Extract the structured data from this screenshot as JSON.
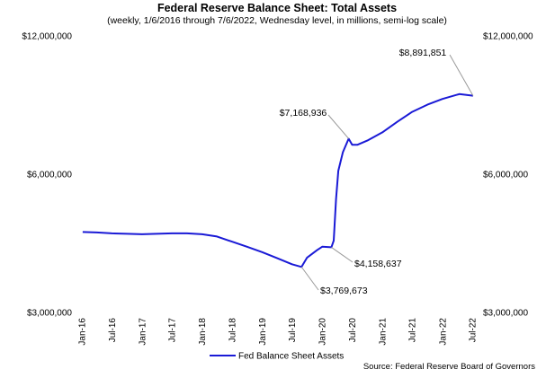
{
  "chart_data": {
    "type": "line",
    "title": "Federal Reserve Balance Sheet: Total Assets",
    "subtitle": "(weekly, 1/6/2016 through 7/6/2022, Wednesday level, in millions, semi-log scale)",
    "y_scale": "log",
    "ylim": [
      3000000,
      12000000
    ],
    "y_ticks": [
      {
        "value": 12000000,
        "label": "$12,000,000"
      },
      {
        "value": 6000000,
        "label": "$6,000,000"
      },
      {
        "value": 3000000,
        "label": "$3,000,000"
      }
    ],
    "x_range": [
      "2016-01-06",
      "2022-07-06"
    ],
    "x_ticks": [
      {
        "date": "2016-01-01",
        "label": "Jan-16"
      },
      {
        "date": "2016-07-01",
        "label": "Jul-16"
      },
      {
        "date": "2017-01-01",
        "label": "Jan-17"
      },
      {
        "date": "2017-07-01",
        "label": "Jul-17"
      },
      {
        "date": "2018-01-01",
        "label": "Jan-18"
      },
      {
        "date": "2018-07-01",
        "label": "Jul-18"
      },
      {
        "date": "2019-01-01",
        "label": "Jan-19"
      },
      {
        "date": "2019-07-01",
        "label": "Jul-19"
      },
      {
        "date": "2020-01-01",
        "label": "Jan-20"
      },
      {
        "date": "2020-07-01",
        "label": "Jul-20"
      },
      {
        "date": "2021-01-01",
        "label": "Jan-21"
      },
      {
        "date": "2021-07-01",
        "label": "Jul-21"
      },
      {
        "date": "2022-01-01",
        "label": "Jan-22"
      },
      {
        "date": "2022-07-01",
        "label": "Jul-22"
      }
    ],
    "grid": false,
    "legend_position": "bottom-left",
    "series": [
      {
        "name": "Fed Balance Sheet Assets",
        "color": "#1a1ad6",
        "points": [
          [
            "2016-01-06",
            4490000
          ],
          [
            "2016-04-01",
            4480000
          ],
          [
            "2016-07-01",
            4460000
          ],
          [
            "2016-10-01",
            4450000
          ],
          [
            "2017-01-01",
            4440000
          ],
          [
            "2017-04-01",
            4450000
          ],
          [
            "2017-07-01",
            4460000
          ],
          [
            "2017-10-01",
            4460000
          ],
          [
            "2018-01-01",
            4440000
          ],
          [
            "2018-04-01",
            4390000
          ],
          [
            "2018-07-01",
            4280000
          ],
          [
            "2018-10-01",
            4170000
          ],
          [
            "2019-01-01",
            4060000
          ],
          [
            "2019-04-01",
            3940000
          ],
          [
            "2019-07-01",
            3820000
          ],
          [
            "2019-08-28",
            3769673
          ],
          [
            "2019-10-01",
            3950000
          ],
          [
            "2019-12-01",
            4100000
          ],
          [
            "2020-01-01",
            4170000
          ],
          [
            "2020-02-26",
            4158637
          ],
          [
            "2020-03-11",
            4300000
          ],
          [
            "2020-03-25",
            5300000
          ],
          [
            "2020-04-08",
            6100000
          ],
          [
            "2020-05-06",
            6700000
          ],
          [
            "2020-06-10",
            7168936
          ],
          [
            "2020-07-01",
            6950000
          ],
          [
            "2020-08-01",
            6950000
          ],
          [
            "2020-10-01",
            7100000
          ],
          [
            "2021-01-01",
            7400000
          ],
          [
            "2021-04-01",
            7800000
          ],
          [
            "2021-07-01",
            8200000
          ],
          [
            "2021-10-01",
            8500000
          ],
          [
            "2022-01-01",
            8750000
          ],
          [
            "2022-04-13",
            8965000
          ],
          [
            "2022-07-06",
            8891851
          ]
        ]
      }
    ],
    "annotations": [
      {
        "label": "$8,891,851",
        "date": "2022-07-06",
        "value": 8891851
      },
      {
        "label": "$7,168,936",
        "date": "2020-06-10",
        "value": 7168936
      },
      {
        "label": "$4,158,637",
        "date": "2020-02-26",
        "value": 4158637
      },
      {
        "label": "$3,769,673",
        "date": "2019-08-28",
        "value": 3769673
      }
    ],
    "source": "Source: Federal Reserve Board of Governors"
  }
}
